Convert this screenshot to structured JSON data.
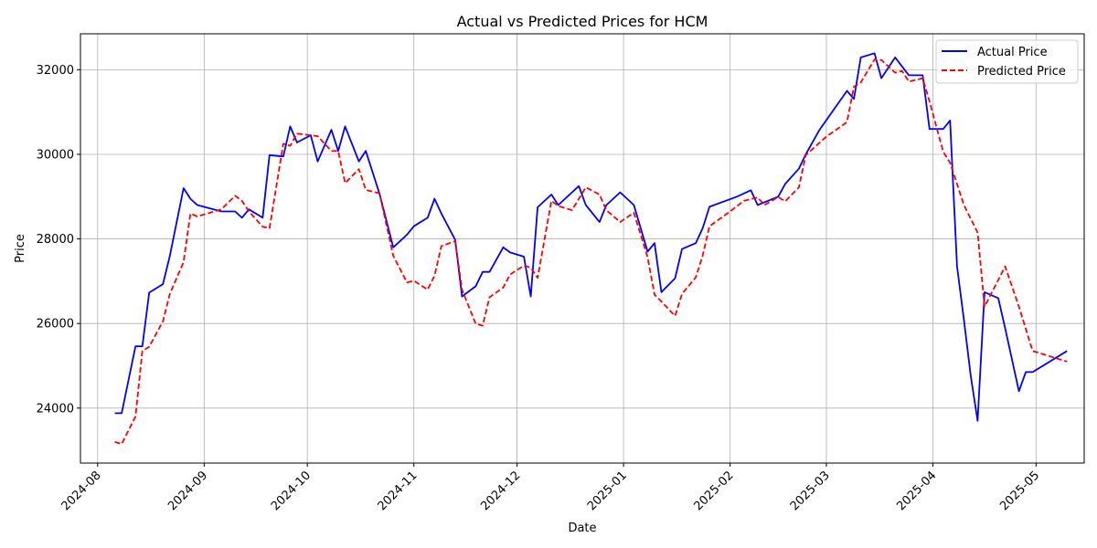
{
  "chart_data": {
    "type": "line",
    "title": "Actual vs Predicted Prices for HCM",
    "xlabel": "Date",
    "ylabel": "Price",
    "xlim": [
      "2024-07-27",
      "2025-05-15"
    ],
    "ylim": [
      22700,
      32850
    ],
    "grid": true,
    "legend_position": "top-right",
    "x_ticks": [
      "2024-08-01",
      "2024-09-01",
      "2024-10-01",
      "2024-11-01",
      "2024-12-01",
      "2025-01-01",
      "2025-02-01",
      "2025-03-01",
      "2025-04-01",
      "2025-05-01"
    ],
    "x_tick_labels": [
      "2024-08",
      "2024-09",
      "2024-10",
      "2024-11",
      "2024-12",
      "2025-01",
      "2025-02",
      "2025-03",
      "2025-04",
      "2025-05"
    ],
    "y_ticks": [
      24000,
      26000,
      28000,
      30000,
      32000
    ],
    "y_tick_labels": [
      "24000",
      "26000",
      "28000",
      "30000",
      "32000"
    ],
    "series": [
      {
        "name": "Actual Price",
        "color": "#0000ff",
        "style": "solid",
        "points": [
          [
            "2024-08-06",
            23880
          ],
          [
            "2024-08-08",
            23880
          ],
          [
            "2024-08-12",
            25460
          ],
          [
            "2024-08-14",
            25460
          ],
          [
            "2024-08-16",
            26730
          ],
          [
            "2024-08-20",
            26930
          ],
          [
            "2024-08-22",
            27600
          ],
          [
            "2024-08-26",
            29200
          ],
          [
            "2024-08-28",
            28950
          ],
          [
            "2024-08-30",
            28800
          ],
          [
            "2024-09-06",
            28650
          ],
          [
            "2024-09-10",
            28650
          ],
          [
            "2024-09-12",
            28500
          ],
          [
            "2024-09-14",
            28700
          ],
          [
            "2024-09-18",
            28500
          ],
          [
            "2024-09-20",
            29980
          ],
          [
            "2024-09-24",
            29950
          ],
          [
            "2024-09-26",
            30660
          ],
          [
            "2024-09-28",
            30280
          ],
          [
            "2024-10-02",
            30450
          ],
          [
            "2024-10-04",
            29830
          ],
          [
            "2024-10-08",
            30580
          ],
          [
            "2024-10-10",
            30080
          ],
          [
            "2024-10-12",
            30660
          ],
          [
            "2024-10-16",
            29830
          ],
          [
            "2024-10-18",
            30080
          ],
          [
            "2024-10-22",
            29070
          ],
          [
            "2024-10-26",
            27800
          ],
          [
            "2024-10-30",
            28100
          ],
          [
            "2024-11-01",
            28300
          ],
          [
            "2024-11-05",
            28500
          ],
          [
            "2024-11-07",
            28950
          ],
          [
            "2024-11-09",
            28600
          ],
          [
            "2024-11-13",
            27980
          ],
          [
            "2024-11-15",
            26640
          ],
          [
            "2024-11-19",
            26880
          ],
          [
            "2024-11-21",
            27220
          ],
          [
            "2024-11-23",
            27220
          ],
          [
            "2024-11-27",
            27800
          ],
          [
            "2024-11-29",
            27680
          ],
          [
            "2024-12-03",
            27580
          ],
          [
            "2024-12-05",
            26640
          ],
          [
            "2024-12-07",
            28750
          ],
          [
            "2024-12-11",
            29050
          ],
          [
            "2024-12-13",
            28800
          ],
          [
            "2024-12-19",
            29250
          ],
          [
            "2024-12-21",
            28800
          ],
          [
            "2024-12-25",
            28400
          ],
          [
            "2024-12-27",
            28800
          ],
          [
            "2024-12-31",
            29100
          ],
          [
            "2025-01-04",
            28800
          ],
          [
            "2025-01-08",
            27700
          ],
          [
            "2025-01-10",
            27900
          ],
          [
            "2025-01-12",
            26740
          ],
          [
            "2025-01-16",
            27070
          ],
          [
            "2025-01-18",
            27760
          ],
          [
            "2025-01-22",
            27900
          ],
          [
            "2025-01-24",
            28250
          ],
          [
            "2025-01-26",
            28760
          ],
          [
            "2025-02-03",
            29000
          ],
          [
            "2025-02-07",
            29150
          ],
          [
            "2025-02-09",
            28800
          ],
          [
            "2025-02-15",
            29000
          ],
          [
            "2025-02-17",
            29300
          ],
          [
            "2025-02-21",
            29660
          ],
          [
            "2025-02-23",
            30000
          ],
          [
            "2025-02-27",
            30580
          ],
          [
            "2025-03-07",
            31500
          ],
          [
            "2025-03-09",
            31310
          ],
          [
            "2025-03-11",
            32290
          ],
          [
            "2025-03-15",
            32390
          ],
          [
            "2025-03-17",
            31800
          ],
          [
            "2025-03-21",
            32290
          ],
          [
            "2025-03-25",
            31870
          ],
          [
            "2025-03-29",
            31870
          ],
          [
            "2025-03-31",
            30600
          ],
          [
            "2025-04-04",
            30600
          ],
          [
            "2025-04-06",
            30800
          ],
          [
            "2025-04-08",
            27350
          ],
          [
            "2025-04-10",
            26090
          ],
          [
            "2025-04-12",
            24760
          ],
          [
            "2025-04-14",
            23700
          ],
          [
            "2025-04-16",
            26740
          ],
          [
            "2025-04-20",
            26600
          ],
          [
            "2025-04-22",
            25890
          ],
          [
            "2025-04-26",
            24400
          ],
          [
            "2025-04-28",
            24850
          ],
          [
            "2025-04-30",
            24850
          ],
          [
            "2025-05-10",
            25350
          ]
        ]
      },
      {
        "name": "Predicted Price",
        "color": "#ff0000",
        "style": "dashed",
        "points": [
          [
            "2024-08-06",
            23200
          ],
          [
            "2024-08-08",
            23150
          ],
          [
            "2024-08-12",
            23800
          ],
          [
            "2024-08-14",
            25350
          ],
          [
            "2024-08-16",
            25450
          ],
          [
            "2024-08-20",
            26050
          ],
          [
            "2024-08-22",
            26700
          ],
          [
            "2024-08-26",
            27450
          ],
          [
            "2024-08-28",
            28600
          ],
          [
            "2024-08-30",
            28530
          ],
          [
            "2024-09-06",
            28700
          ],
          [
            "2024-09-10",
            29020
          ],
          [
            "2024-09-12",
            28900
          ],
          [
            "2024-09-14",
            28650
          ],
          [
            "2024-09-18",
            28290
          ],
          [
            "2024-09-20",
            28250
          ],
          [
            "2024-09-24",
            30250
          ],
          [
            "2024-09-26",
            30200
          ],
          [
            "2024-09-28",
            30490
          ],
          [
            "2024-10-02",
            30450
          ],
          [
            "2024-10-04",
            30430
          ],
          [
            "2024-10-08",
            30080
          ],
          [
            "2024-10-10",
            30080
          ],
          [
            "2024-10-12",
            29320
          ],
          [
            "2024-10-16",
            29650
          ],
          [
            "2024-10-18",
            29160
          ],
          [
            "2024-10-22",
            29080
          ],
          [
            "2024-10-26",
            27600
          ],
          [
            "2024-10-30",
            26970
          ],
          [
            "2024-11-01",
            27010
          ],
          [
            "2024-11-05",
            26800
          ],
          [
            "2024-11-07",
            27130
          ],
          [
            "2024-11-09",
            27830
          ],
          [
            "2024-11-13",
            27950
          ],
          [
            "2024-11-15",
            26800
          ],
          [
            "2024-11-19",
            25990
          ],
          [
            "2024-11-21",
            25950
          ],
          [
            "2024-11-23",
            26620
          ],
          [
            "2024-11-27",
            26850
          ],
          [
            "2024-11-29",
            27160
          ],
          [
            "2024-12-03",
            27370
          ],
          [
            "2024-12-05",
            27320
          ],
          [
            "2024-12-07",
            27080
          ],
          [
            "2024-12-11",
            28900
          ],
          [
            "2024-12-13",
            28780
          ],
          [
            "2024-12-17",
            28680
          ],
          [
            "2024-12-21",
            29220
          ],
          [
            "2024-12-25",
            29050
          ],
          [
            "2024-12-27",
            28680
          ],
          [
            "2024-12-31",
            28400
          ],
          [
            "2025-01-04",
            28620
          ],
          [
            "2025-01-08",
            27570
          ],
          [
            "2025-01-10",
            26680
          ],
          [
            "2025-01-12",
            26520
          ],
          [
            "2025-01-16",
            26180
          ],
          [
            "2025-01-18",
            26700
          ],
          [
            "2025-01-22",
            27090
          ],
          [
            "2025-01-24",
            27600
          ],
          [
            "2025-01-26",
            28300
          ],
          [
            "2025-02-01",
            28650
          ],
          [
            "2025-02-05",
            28900
          ],
          [
            "2025-02-09",
            28980
          ],
          [
            "2025-02-11",
            28800
          ],
          [
            "2025-02-15",
            28990
          ],
          [
            "2025-02-17",
            28890
          ],
          [
            "2025-02-21",
            29220
          ],
          [
            "2025-02-23",
            29980
          ],
          [
            "2025-03-01",
            30420
          ],
          [
            "2025-03-07",
            30760
          ],
          [
            "2025-03-09",
            31600
          ],
          [
            "2025-03-11",
            31700
          ],
          [
            "2025-03-15",
            32240
          ],
          [
            "2025-03-17",
            32230
          ],
          [
            "2025-03-21",
            31930
          ],
          [
            "2025-03-23",
            31970
          ],
          [
            "2025-03-25",
            31720
          ],
          [
            "2025-03-29",
            31800
          ],
          [
            "2025-03-31",
            31250
          ],
          [
            "2025-04-04",
            30060
          ],
          [
            "2025-04-06",
            29800
          ],
          [
            "2025-04-08",
            29300
          ],
          [
            "2025-04-10",
            28800
          ],
          [
            "2025-04-14",
            28150
          ],
          [
            "2025-04-16",
            26400
          ],
          [
            "2025-04-20",
            27030
          ],
          [
            "2025-04-22",
            27350
          ],
          [
            "2025-04-26",
            26400
          ],
          [
            "2025-04-30",
            25350
          ],
          [
            "2025-05-10",
            25100
          ]
        ]
      }
    ]
  }
}
